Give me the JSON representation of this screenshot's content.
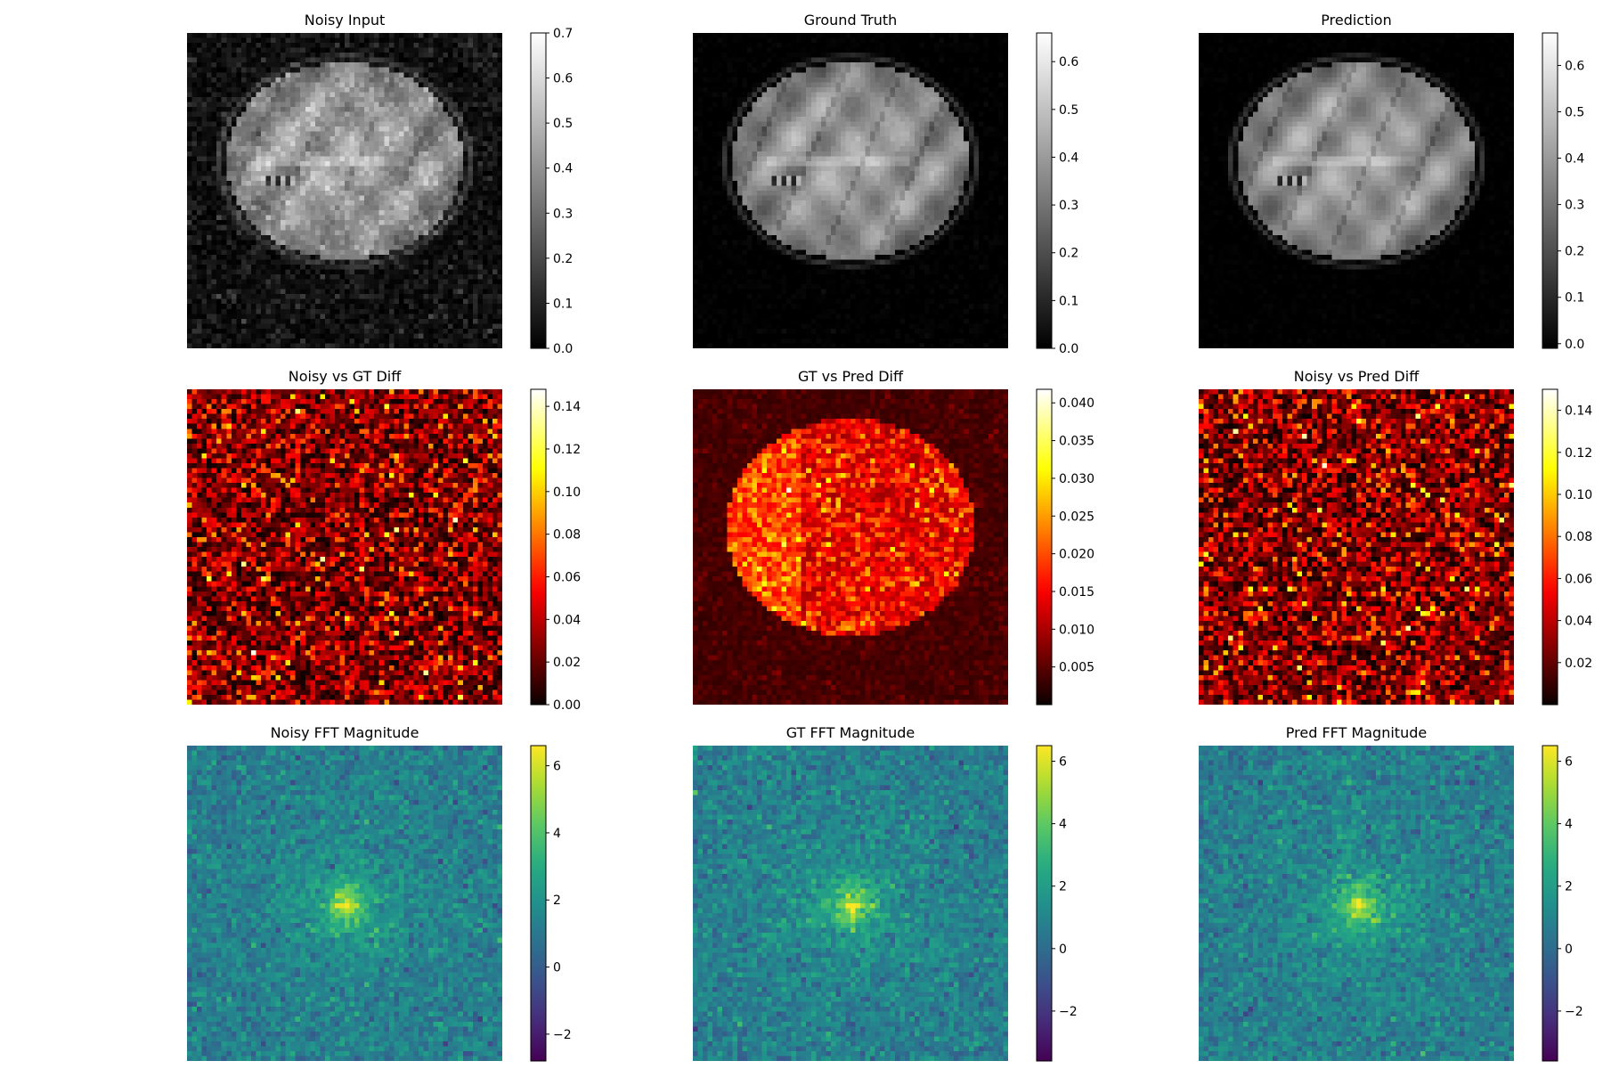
{
  "chart_data": [
    {
      "type": "heatmap",
      "title": "Noisy Input",
      "colormap": "gray",
      "axes": "off",
      "grid": false,
      "clim": [
        0,
        0.7
      ],
      "colorbar_ticks": [
        0,
        0.1,
        0.2,
        0.3,
        0.4,
        0.5,
        0.6,
        0.7
      ],
      "colorbar_tick_labels": [
        "0.0",
        "0.1",
        "0.2",
        "0.3",
        "0.4",
        "0.5",
        "0.6",
        "0.7"
      ],
      "content": "noisy-brain"
    },
    {
      "type": "heatmap",
      "title": "Ground Truth",
      "colormap": "gray",
      "axes": "off",
      "grid": false,
      "clim": [
        0,
        0.66
      ],
      "colorbar_ticks": [
        0,
        0.1,
        0.2,
        0.3,
        0.4,
        0.5,
        0.6
      ],
      "colorbar_tick_labels": [
        "0.0",
        "0.1",
        "0.2",
        "0.3",
        "0.4",
        "0.5",
        "0.6"
      ],
      "content": "clean-brain"
    },
    {
      "type": "heatmap",
      "title": "Prediction",
      "colormap": "gray",
      "axes": "off",
      "grid": false,
      "clim": [
        -0.01,
        0.67
      ],
      "colorbar_ticks": [
        0,
        0.1,
        0.2,
        0.3,
        0.4,
        0.5,
        0.6
      ],
      "colorbar_tick_labels": [
        "0.0",
        "0.1",
        "0.2",
        "0.3",
        "0.4",
        "0.5",
        "0.6"
      ],
      "content": "pred-brain"
    },
    {
      "type": "heatmap",
      "title": "Noisy vs GT Diff",
      "colormap": "hot",
      "axes": "off",
      "grid": false,
      "clim": [
        0,
        0.148
      ],
      "colorbar_ticks": [
        0,
        0.02,
        0.04,
        0.06,
        0.08,
        0.1,
        0.12,
        0.14
      ],
      "colorbar_tick_labels": [
        "0.00",
        "0.02",
        "0.04",
        "0.06",
        "0.08",
        "0.10",
        "0.12",
        "0.14"
      ],
      "content": "noise-diff"
    },
    {
      "type": "heatmap",
      "title": "GT vs Pred Diff",
      "colormap": "hot",
      "axes": "off",
      "grid": false,
      "clim": [
        0,
        0.0418
      ],
      "colorbar_ticks": [
        0.005,
        0.01,
        0.015,
        0.02,
        0.025,
        0.03,
        0.035,
        0.04
      ],
      "colorbar_tick_labels": [
        "0.005",
        "0.010",
        "0.015",
        "0.020",
        "0.025",
        "0.030",
        "0.035",
        "0.040"
      ],
      "content": "pred-diff"
    },
    {
      "type": "heatmap",
      "title": "Noisy vs Pred Diff",
      "colormap": "hot",
      "axes": "off",
      "grid": false,
      "clim": [
        0,
        0.15
      ],
      "colorbar_ticks": [
        0.02,
        0.04,
        0.06,
        0.08,
        0.1,
        0.12,
        0.14
      ],
      "colorbar_tick_labels": [
        "0.02",
        "0.04",
        "0.06",
        "0.08",
        "0.10",
        "0.12",
        "0.14"
      ],
      "content": "noise-diff"
    },
    {
      "type": "heatmap",
      "title": "Noisy FFT Magnitude",
      "colormap": "viridis",
      "axes": "off",
      "grid": false,
      "clim": [
        -2.8,
        6.6
      ],
      "colorbar_ticks": [
        -2,
        0,
        2,
        4,
        6
      ],
      "colorbar_tick_labels": [
        "−2",
        "0",
        "2",
        "4",
        "6"
      ],
      "content": "fft"
    },
    {
      "type": "heatmap",
      "title": "GT FFT Magnitude",
      "colormap": "viridis",
      "axes": "off",
      "grid": false,
      "clim": [
        -3.6,
        6.5
      ],
      "colorbar_ticks": [
        -2,
        0,
        2,
        4,
        6
      ],
      "colorbar_tick_labels": [
        "−2",
        "0",
        "2",
        "4",
        "6"
      ],
      "content": "fft"
    },
    {
      "type": "heatmap",
      "title": "Pred FFT Magnitude",
      "colormap": "viridis",
      "axes": "off",
      "grid": false,
      "clim": [
        -3.6,
        6.5
      ],
      "colorbar_ticks": [
        -2,
        0,
        2,
        4,
        6
      ],
      "colorbar_tick_labels": [
        "−2",
        "0",
        "2",
        "4",
        "6"
      ],
      "content": "fft"
    }
  ]
}
